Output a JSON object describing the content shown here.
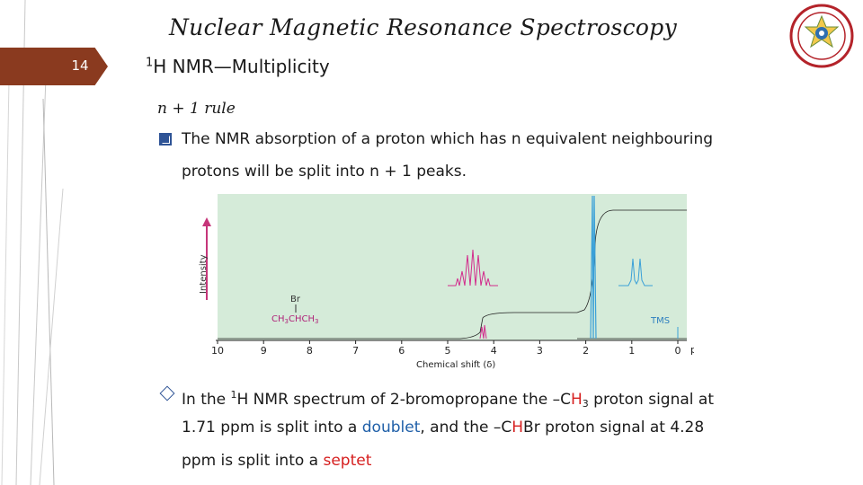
{
  "slide": {
    "number": "14",
    "title": "Nuclear Magnetic Resonance Spectroscopy",
    "subtitle_sup": "1",
    "subtitle": "H NMR—Multiplicity",
    "logo_icon": "university-seal-icon"
  },
  "rule": {
    "label": "n + 1 rule"
  },
  "bullet1": {
    "icon": "checkbox-bullet-icon",
    "line1": "The NMR absorption of a proton which has n equivalent neighbouring",
    "line2": "protons will be  split into n + 1 peaks."
  },
  "figure": {
    "y_label": "Intensity",
    "x_label": "Chemical shift (δ)",
    "x_unit": "ppm",
    "x_ticks": [
      "10",
      "9",
      "8",
      "7",
      "6",
      "5",
      "4",
      "3",
      "2",
      "1",
      "0"
    ],
    "molecule_top": "Br",
    "molecule_main": "CH",
    "molecule_sub1": "3",
    "molecule_mid": "CHCH",
    "molecule_sub2": "3",
    "tms_label": "TMS",
    "colors": {
      "background": "#d5ebd9",
      "inset_septet": "#d22b8c",
      "inset_doublet": "#3aa0d8",
      "arrow": "#c6367a"
    }
  },
  "bullet2": {
    "icon": "diamond-bullet-icon",
    "l1_a": "In the ",
    "l1_sup": "1",
    "l1_b": "H NMR spectrum of 2-bromopropane the –C",
    "l1_h": "H",
    "l1_sub": "3",
    "l1_c": " proton signal at",
    "l2_a": "1.71 ppm is split into a ",
    "l2_doublet": "doublet",
    "l2_b": ", and the –C",
    "l2_h": "H",
    "l2_c": "Br proton signal at 4.28",
    "l3_a": "ppm is split into a ",
    "l3_septet": "septet"
  }
}
